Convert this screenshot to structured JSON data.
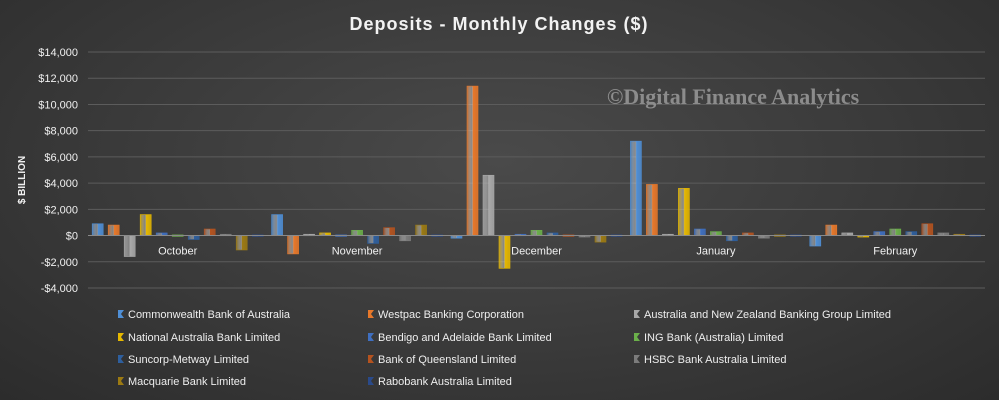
{
  "chart_data": {
    "type": "bar",
    "title": "Deposits  - Monthly  Changes  ($)",
    "ylabel": "$ BILLION",
    "xlabel": "",
    "ylim": [
      -4000,
      14000
    ],
    "yticks": [
      -4000,
      -2000,
      0,
      2000,
      4000,
      6000,
      8000,
      10000,
      12000,
      14000
    ],
    "ytick_labels": [
      "-$4,000",
      "-$2,000",
      "$0",
      "$2,000",
      "$4,000",
      "$6,000",
      "$8,000",
      "$10,000",
      "$12,000",
      "$14,000"
    ],
    "grid": true,
    "legend_position": "bottom",
    "categories": [
      "October",
      "November",
      "December",
      "January",
      "February"
    ],
    "series": [
      {
        "name": "Commonwealth Bank of Australia",
        "color": "#4f8fd6",
        "values": [
          900,
          1600,
          -200,
          7200,
          -800
        ]
      },
      {
        "name": "Westpac Banking Corporation",
        "color": "#e8782a",
        "values": [
          800,
          -1400,
          11400,
          3900,
          800
        ]
      },
      {
        "name": "Australia and New Zealand Banking Group Limited",
        "color": "#a9a9a9",
        "values": [
          -1600,
          100,
          4600,
          100,
          200
        ]
      },
      {
        "name": "National Australia Bank Limited",
        "color": "#e6b800",
        "values": [
          1600,
          200,
          -2500,
          3600,
          -100
        ]
      },
      {
        "name": "Bendigo and Adelaide Bank Limited",
        "color": "#3f6fc0",
        "values": [
          200,
          50,
          100,
          500,
          300
        ]
      },
      {
        "name": "ING Bank (Australia) Limited",
        "color": "#6bb04a",
        "values": [
          50,
          400,
          400,
          300,
          500
        ]
      },
      {
        "name": "Suncorp-Metway Limited",
        "color": "#2e5f9e",
        "values": [
          -300,
          -600,
          200,
          -400,
          300
        ]
      },
      {
        "name": "Bank of Queensland Limited",
        "color": "#b5531f",
        "values": [
          500,
          600,
          50,
          200,
          900
        ]
      },
      {
        "name": "HSBC Bank Australia Limited",
        "color": "#7c7c7c",
        "values": [
          100,
          -400,
          -100,
          -200,
          200
        ]
      },
      {
        "name": "Macquarie Bank Limited",
        "color": "#9c7a12",
        "values": [
          -1100,
          800,
          -500,
          50,
          100
        ]
      },
      {
        "name": "Rabobank Australia Limited",
        "color": "#2a4a8a",
        "values": [
          50,
          50,
          50,
          50,
          50
        ]
      }
    ],
    "watermark": "©Digital Finance Analytics"
  }
}
